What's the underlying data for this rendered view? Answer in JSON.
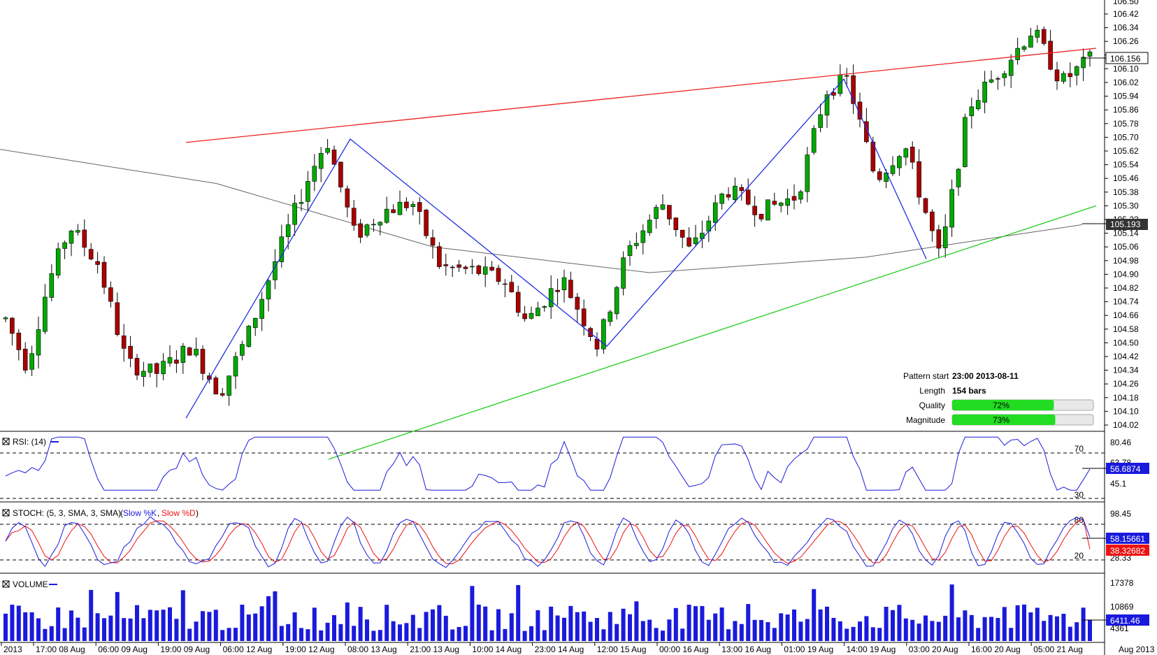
{
  "chart_data": {
    "type": "candlestick",
    "price_axis": {
      "ylim": [
        104.0,
        106.5
      ],
      "ticks": [
        "106.42",
        "106.34",
        "106.26",
        "106.18",
        "106.10",
        "106.02",
        "105.94",
        "105.86",
        "105.78",
        "105.70",
        "105.62",
        "105.54",
        "105.46",
        "105.38",
        "105.30",
        "105.22",
        "105.14",
        "105.06",
        "104.98",
        "104.90",
        "104.82",
        "104.74",
        "104.66",
        "104.58",
        "104.50",
        "104.42",
        "104.34",
        "104.26",
        "104.18",
        "104.10",
        "104.02"
      ],
      "top_partial": "106.50",
      "price_label": "106.156",
      "ma_label": "105.193"
    },
    "x_ticks": [
      "2013",
      "17:00 08 Aug",
      "06:00 09 Aug",
      "19:00 09 Aug",
      "06:00 12 Aug",
      "19:00 12 Aug",
      "08:00 13 Aug",
      "21:00 13 Aug",
      "10:00 14 Aug",
      "23:00 14 Aug",
      "12:00 15 Aug",
      "00:00 16 Aug",
      "13:00 16 Aug",
      "01:00 19 Aug",
      "14:00 19 Aug",
      "03:00 20 Aug",
      "16:00 20 Aug",
      "05:00 21 Aug"
    ],
    "x_axis_end_label": "Aug 2013",
    "pattern": {
      "start_label": "Pattern start",
      "start_value": "23:00 2013-08-11",
      "length_label": "Length",
      "length_value": "154 bars",
      "quality_label": "Quality",
      "quality_value": "72%",
      "quality_pct": 72,
      "magnitude_label": "Magnitude",
      "magnitude_value": "73%",
      "magnitude_pct": 73
    },
    "zigzag_prices": [
      104.06,
      105.69,
      104.48,
      106.04,
      104.99
    ],
    "upper_line_prices": [
      105.67,
      106.22
    ],
    "lower_line_prices": [
      103.82,
      105.3
    ],
    "ma_prices": [
      105.63,
      105.43,
      105.06,
      104.91,
      105.0,
      105.19
    ],
    "rsi": {
      "title": "RSI: (14)",
      "levels": [
        "70",
        "30"
      ],
      "ticks": [
        "80.46",
        "45.1"
      ],
      "partial_tick": "63.78",
      "current": "56.6874",
      "current_value": 56.6874
    },
    "stoch": {
      "title": "STOCH: (5, 3, SMA, 3, SMA)",
      "k_label": "Slow %K",
      "d_label": "Slow %D",
      "comma": ",",
      "levels": [
        "80",
        "20"
      ],
      "ticks": [
        "98.45"
      ],
      "partial_tick": "28.33",
      "k_current": "58.15661",
      "d_current": "38.32682"
    },
    "volume": {
      "title": "VOLUME",
      "ticks": [
        "17378",
        "10869"
      ],
      "partial_tick": "4361",
      "current": "6411.46",
      "current_value": 6411.46
    },
    "colors": {
      "bull": "#00aa00",
      "bear": "#aa0000",
      "zigzag": "#2030e0",
      "upper_line": "#ee2222",
      "lower_line": "#22cc22",
      "ma": "#666666",
      "rsi": "#1a1add",
      "stoch_k": "#1a1add",
      "stoch_d": "#ee1111",
      "volume": "#1a1add",
      "quality_bar": "#22dd22"
    }
  }
}
